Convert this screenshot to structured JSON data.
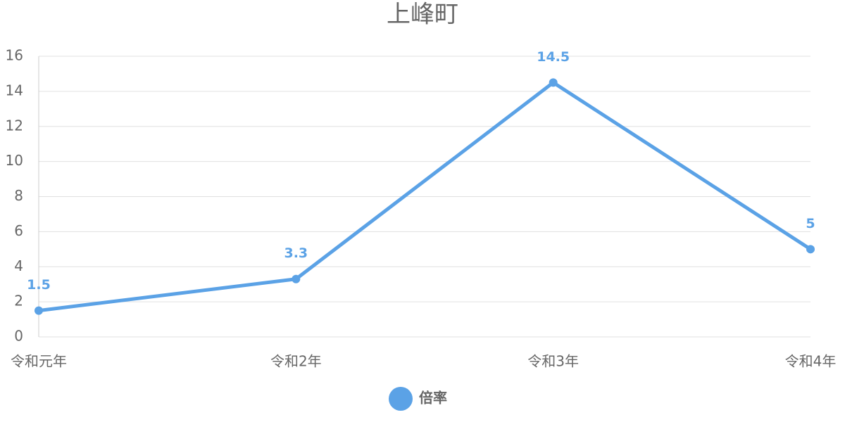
{
  "chart_data": {
    "type": "line",
    "title": "上峰町",
    "categories": [
      "令和元年",
      "令和2年",
      "令和3年",
      "令和4年"
    ],
    "series": [
      {
        "name": "倍率",
        "color": "#5ba2e6",
        "values": [
          1.5,
          3.3,
          14.5,
          5
        ]
      }
    ],
    "ylim": [
      0,
      16
    ],
    "yticks": [
      0,
      2,
      4,
      6,
      8,
      10,
      12,
      14,
      16
    ],
    "grid": true,
    "legend": "bottom"
  }
}
